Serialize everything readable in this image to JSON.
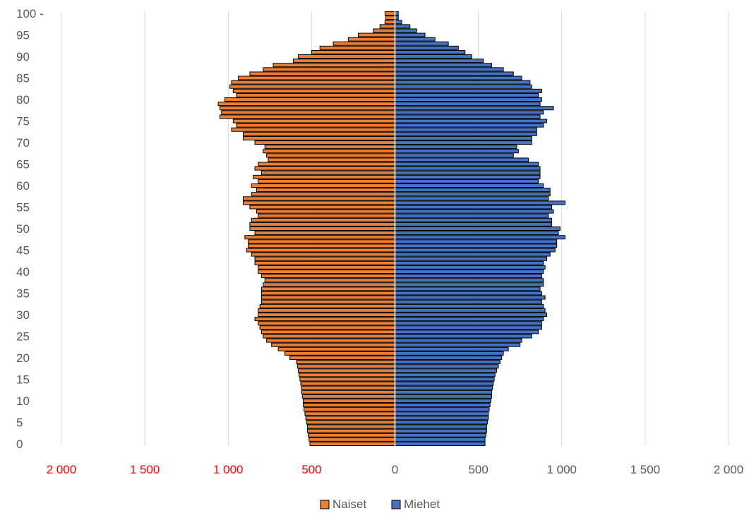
{
  "colors": {
    "naiset": "#ED7D31",
    "miehet": "#4472C4",
    "bar_stroke": "#000000",
    "grid": "#D9D9D9",
    "axis_text": "#595959",
    "x_tick_neg": "#FF0000",
    "x_tick_pos": "#595959"
  },
  "chart_data": {
    "type": "bar",
    "orientation": "horizontal",
    "title": "",
    "xlabel": "",
    "ylabel": "",
    "grid": true,
    "legend_position": "bottom",
    "xlim": [
      -2000,
      2000
    ],
    "x_ticks": [
      -2000,
      -1500,
      -1000,
      -500,
      0,
      500,
      1000,
      1500,
      2000
    ],
    "x_tick_labels": [
      "2 000",
      "1 500",
      "1 000",
      "500",
      "0",
      "500",
      "1 000",
      "1 500",
      "2 000"
    ],
    "categories": [
      "0",
      "1",
      "2",
      "3",
      "4",
      "5",
      "6",
      "7",
      "8",
      "9",
      "10",
      "11",
      "12",
      "13",
      "14",
      "15",
      "16",
      "17",
      "18",
      "19",
      "20",
      "21",
      "22",
      "23",
      "24",
      "25",
      "26",
      "27",
      "28",
      "29",
      "30",
      "31",
      "32",
      "33",
      "34",
      "35",
      "36",
      "37",
      "38",
      "39",
      "40",
      "41",
      "42",
      "43",
      "44",
      "45",
      "46",
      "47",
      "48",
      "49",
      "50",
      "51",
      "52",
      "53",
      "54",
      "55",
      "56",
      "57",
      "58",
      "59",
      "60",
      "61",
      "62",
      "63",
      "64",
      "65",
      "66",
      "67",
      "68",
      "69",
      "70",
      "71",
      "72",
      "73",
      "74",
      "75",
      "76",
      "77",
      "78",
      "79",
      "80",
      "81",
      "82",
      "83",
      "84",
      "85",
      "86",
      "87",
      "88",
      "89",
      "90",
      "91",
      "92",
      "93",
      "94",
      "95",
      "96",
      "97",
      "98",
      "99",
      "100 -"
    ],
    "y_tick_labels": [
      "0",
      "5",
      "10",
      "15",
      "20",
      "25",
      "30",
      "35",
      "40",
      "45",
      "50",
      "55",
      "60",
      "65",
      "70",
      "75",
      "80",
      "85",
      "90",
      "95",
      "100 -"
    ],
    "series": [
      {
        "name": "Naiset",
        "values": [
          510,
          515,
          520,
          525,
          525,
          530,
          535,
          540,
          545,
          550,
          550,
          555,
          560,
          560,
          565,
          570,
          575,
          580,
          585,
          590,
          630,
          660,
          700,
          740,
          770,
          790,
          800,
          810,
          820,
          840,
          820,
          820,
          810,
          800,
          800,
          800,
          800,
          790,
          780,
          800,
          820,
          820,
          840,
          840,
          860,
          890,
          880,
          880,
          900,
          840,
          870,
          870,
          860,
          820,
          830,
          870,
          910,
          910,
          860,
          830,
          860,
          820,
          850,
          800,
          840,
          820,
          760,
          770,
          790,
          780,
          840,
          910,
          910,
          980,
          950,
          970,
          1050,
          1040,
          1050,
          1060,
          1020,
          950,
          970,
          990,
          980,
          940,
          870,
          790,
          730,
          610,
          580,
          500,
          450,
          370,
          280,
          220,
          130,
          90,
          60,
          55,
          60
        ]
      },
      {
        "name": "Miehet",
        "values": [
          540,
          540,
          545,
          550,
          550,
          555,
          560,
          560,
          565,
          570,
          575,
          580,
          580,
          585,
          590,
          595,
          600,
          610,
          620,
          630,
          640,
          650,
          680,
          750,
          760,
          820,
          860,
          880,
          880,
          890,
          910,
          900,
          890,
          880,
          900,
          880,
          870,
          890,
          890,
          880,
          890,
          900,
          890,
          910,
          930,
          960,
          970,
          970,
          1020,
          980,
          990,
          940,
          940,
          920,
          950,
          940,
          1020,
          920,
          930,
          930,
          890,
          860,
          870,
          870,
          870,
          860,
          800,
          710,
          740,
          730,
          820,
          820,
          850,
          850,
          890,
          910,
          870,
          890,
          950,
          870,
          880,
          860,
          880,
          820,
          810,
          760,
          710,
          650,
          580,
          530,
          460,
          420,
          380,
          320,
          240,
          180,
          130,
          90,
          40,
          20,
          20
        ]
      }
    ]
  },
  "legend": [
    {
      "label": "Naiset",
      "color": "#ED7D31"
    },
    {
      "label": "Miehet",
      "color": "#4472C4"
    }
  ]
}
